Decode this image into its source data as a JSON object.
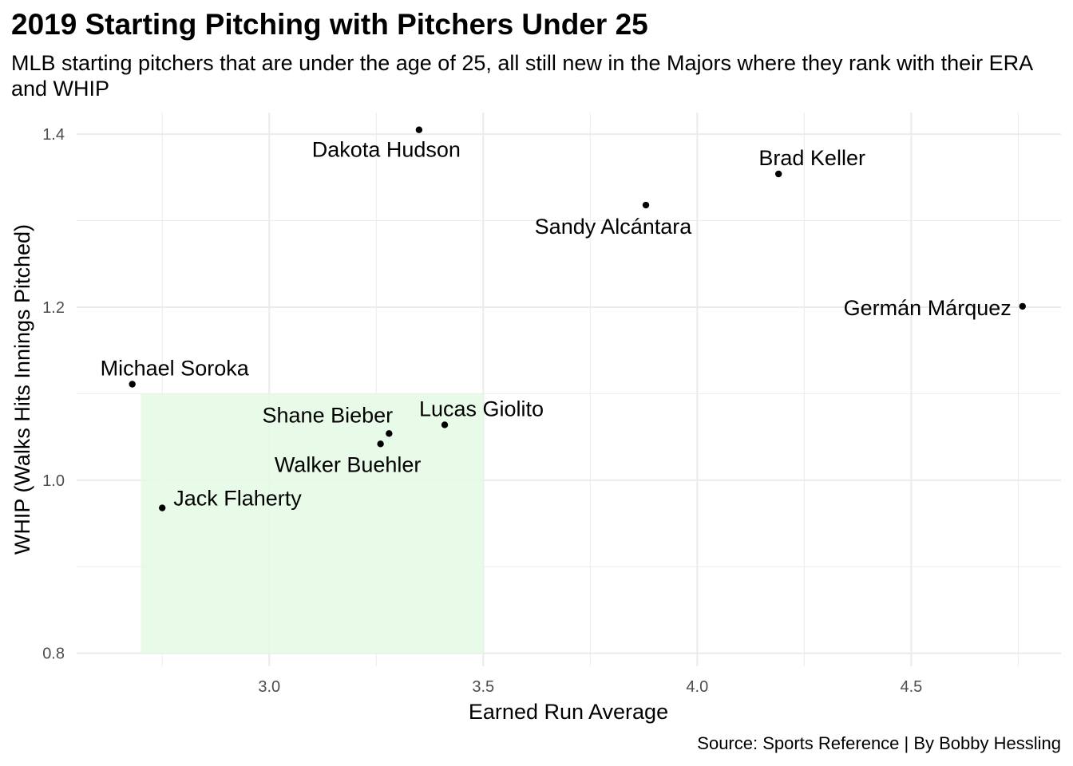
{
  "title": "2019 Starting Pitching with Pitchers Under 25",
  "subtitle": "MLB starting pitchers that are under the age of 25, all still new in the Majors where they rank with their ERA and WHIP",
  "caption": "Source: Sports Reference | By Bobby Hessling",
  "colors": {
    "point": "#000000",
    "highlight": "#e6f9e6",
    "grid": "#ebebeb",
    "tick": "#4d4d4d"
  },
  "chart_data": {
    "type": "scatter",
    "xlabel": "Earned Run Average",
    "ylabel": "WHIP (Walks Hits Innings Pitched)",
    "xlim": [
      2.55,
      4.85
    ],
    "ylim": [
      0.785,
      1.425
    ],
    "xticks": [
      3.0,
      3.5,
      4.0,
      4.5
    ],
    "xtick_labels": [
      "3.0",
      "3.5",
      "4.0",
      "4.5"
    ],
    "yticks": [
      0.8,
      1.0,
      1.2,
      1.4
    ],
    "ytick_labels": [
      "0.8",
      "1.0",
      "1.2",
      "1.4"
    ],
    "grid": true,
    "highlight_region": {
      "x": [
        2.7,
        3.5
      ],
      "y": [
        0.8,
        1.1
      ]
    },
    "points": [
      {
        "name": "Dakota Hudson",
        "x": 3.35,
        "y": 1.405
      },
      {
        "name": "Brad Keller",
        "x": 4.19,
        "y": 1.354
      },
      {
        "name": "Sandy Alcántara",
        "x": 3.88,
        "y": 1.318
      },
      {
        "name": "Germán Márquez",
        "x": 4.76,
        "y": 1.201
      },
      {
        "name": "Michael Soroka",
        "x": 2.68,
        "y": 1.111
      },
      {
        "name": "Lucas Giolito",
        "x": 3.41,
        "y": 1.064
      },
      {
        "name": "Shane Bieber",
        "x": 3.28,
        "y": 1.054
      },
      {
        "name": "Walker Buehler",
        "x": 3.26,
        "y": 1.042
      },
      {
        "name": "Jack Flaherty",
        "x": 2.75,
        "y": 0.968
      }
    ]
  }
}
